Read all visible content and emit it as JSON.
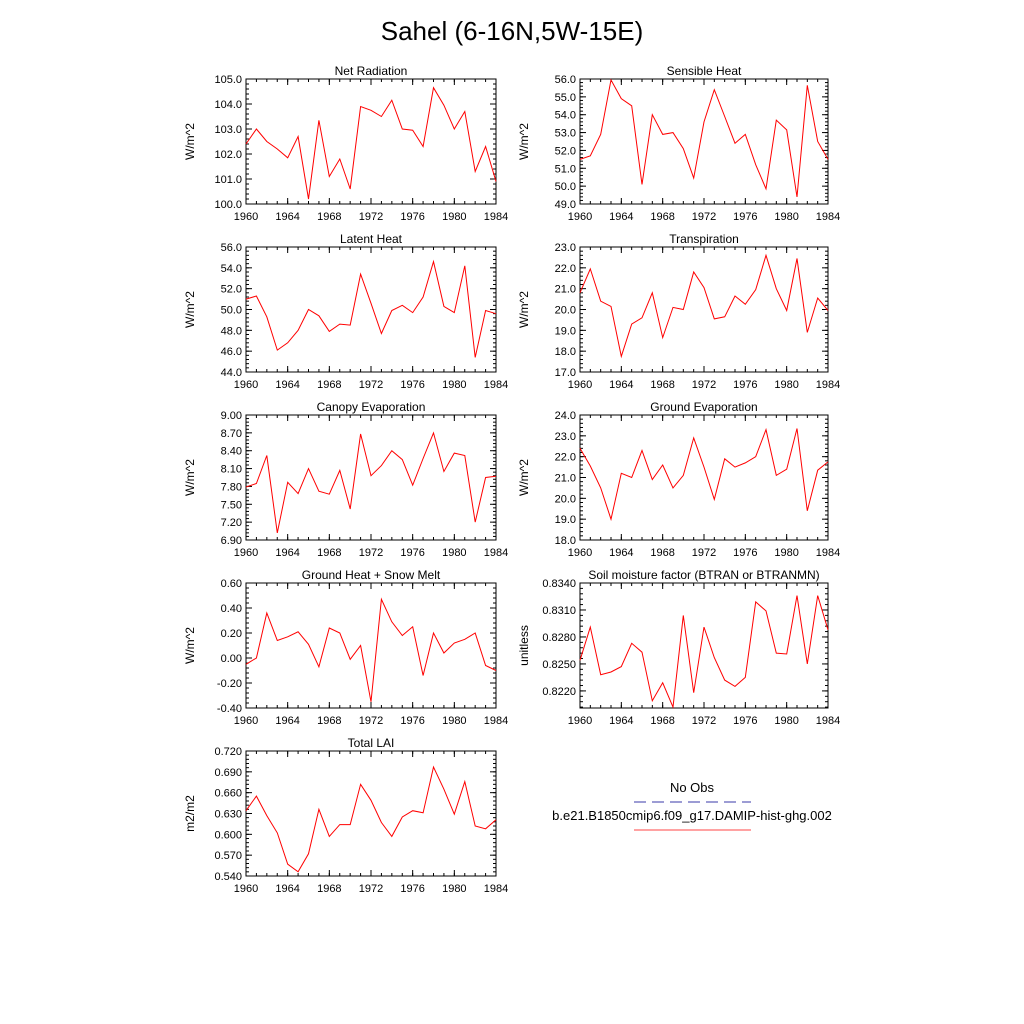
{
  "title": "Sahel (6-16N,5W-15E)",
  "chart_data": [
    {
      "type": "line",
      "title": "Net Radiation",
      "ylabel": "W/m^2",
      "x": [
        1960,
        1961,
        1962,
        1963,
        1964,
        1965,
        1966,
        1967,
        1968,
        1969,
        1970,
        1971,
        1972,
        1973,
        1974,
        1975,
        1976,
        1977,
        1978,
        1979,
        1980,
        1981,
        1982,
        1983,
        1984
      ],
      "values": [
        102.4,
        103.0,
        102.5,
        102.2,
        101.85,
        102.7,
        100.2,
        103.35,
        101.1,
        101.8,
        100.6,
        103.9,
        103.75,
        103.5,
        104.15,
        103.0,
        102.95,
        102.3,
        104.65,
        103.95,
        103.0,
        103.7,
        101.3,
        102.3,
        100.9
      ],
      "xlim": [
        1960,
        1984
      ],
      "ylim": [
        100.0,
        105.0
      ],
      "xticks": [
        "1960",
        "1964",
        "1968",
        "1972",
        "1976",
        "1980",
        "1984"
      ],
      "yticks": [
        "100.0",
        "101.0",
        "102.0",
        "103.0",
        "104.0",
        "105.0"
      ],
      "color": "#ff0000"
    },
    {
      "type": "line",
      "title": "Sensible Heat",
      "ylabel": "W/m^2",
      "x": [
        1960,
        1961,
        1962,
        1963,
        1964,
        1965,
        1966,
        1967,
        1968,
        1969,
        1970,
        1971,
        1972,
        1973,
        1974,
        1975,
        1976,
        1977,
        1978,
        1979,
        1980,
        1981,
        1982,
        1983,
        1984
      ],
      "values": [
        51.5,
        51.7,
        52.9,
        55.95,
        54.9,
        54.5,
        50.1,
        54.0,
        52.9,
        53.0,
        52.1,
        50.45,
        53.6,
        55.4,
        53.9,
        52.4,
        52.9,
        51.2,
        49.85,
        53.7,
        53.15,
        49.4,
        55.65,
        52.5,
        51.5
      ],
      "xlim": [
        1960,
        1984
      ],
      "ylim": [
        49.0,
        56.0
      ],
      "xticks": [
        "1960",
        "1964",
        "1968",
        "1972",
        "1976",
        "1980",
        "1984"
      ],
      "yticks": [
        "49.0",
        "50.0",
        "51.0",
        "52.0",
        "53.0",
        "54.0",
        "55.0",
        "56.0"
      ],
      "color": "#ff0000"
    },
    {
      "type": "line",
      "title": "Latent Heat",
      "ylabel": "W/m^2",
      "x": [
        1960,
        1961,
        1962,
        1963,
        1964,
        1965,
        1966,
        1967,
        1968,
        1969,
        1970,
        1971,
        1972,
        1973,
        1974,
        1975,
        1976,
        1977,
        1978,
        1979,
        1980,
        1981,
        1982,
        1983,
        1984
      ],
      "values": [
        51.0,
        51.3,
        49.3,
        46.1,
        46.8,
        48.0,
        50.0,
        49.4,
        47.9,
        48.6,
        48.5,
        53.4,
        50.6,
        47.7,
        49.9,
        50.4,
        49.7,
        51.2,
        54.6,
        50.3,
        49.7,
        54.2,
        45.4,
        49.9,
        49.6
      ],
      "xlim": [
        1960,
        1984
      ],
      "ylim": [
        44.0,
        56.0
      ],
      "xticks": [
        "1960",
        "1964",
        "1968",
        "1972",
        "1976",
        "1980",
        "1984"
      ],
      "yticks": [
        "44.0",
        "46.0",
        "48.0",
        "50.0",
        "52.0",
        "54.0",
        "56.0"
      ],
      "color": "#ff0000"
    },
    {
      "type": "line",
      "title": "Transpiration",
      "ylabel": "W/m^2",
      "x": [
        1960,
        1961,
        1962,
        1963,
        1964,
        1965,
        1966,
        1967,
        1968,
        1969,
        1970,
        1971,
        1972,
        1973,
        1974,
        1975,
        1976,
        1977,
        1978,
        1979,
        1980,
        1981,
        1982,
        1983,
        1984
      ],
      "values": [
        20.8,
        21.95,
        20.4,
        20.15,
        17.75,
        19.3,
        19.6,
        20.8,
        18.65,
        20.1,
        20.0,
        21.8,
        21.05,
        19.55,
        19.65,
        20.65,
        20.25,
        20.95,
        22.6,
        21.0,
        19.95,
        22.45,
        18.9,
        20.55,
        19.95
      ],
      "xlim": [
        1960,
        1984
      ],
      "ylim": [
        17.0,
        23.0
      ],
      "xticks": [
        "1960",
        "1964",
        "1968",
        "1972",
        "1976",
        "1980",
        "1984"
      ],
      "yticks": [
        "17.0",
        "18.0",
        "19.0",
        "20.0",
        "21.0",
        "22.0",
        "23.0"
      ],
      "color": "#ff0000"
    },
    {
      "type": "line",
      "title": "Canopy Evaporation",
      "ylabel": "W/m^2",
      "x": [
        1960,
        1961,
        1962,
        1963,
        1964,
        1965,
        1966,
        1967,
        1968,
        1969,
        1970,
        1971,
        1972,
        1973,
        1974,
        1975,
        1976,
        1977,
        1978,
        1979,
        1980,
        1981,
        1982,
        1983,
        1984
      ],
      "values": [
        7.79,
        7.85,
        8.32,
        7.02,
        7.87,
        7.68,
        8.1,
        7.72,
        7.67,
        8.07,
        7.42,
        8.68,
        7.98,
        8.15,
        8.4,
        8.25,
        7.82,
        8.27,
        8.7,
        8.05,
        8.36,
        8.32,
        7.2,
        7.95,
        7.97
      ],
      "xlim": [
        1960,
        1984
      ],
      "ylim": [
        6.9,
        9.0
      ],
      "xticks": [
        "1960",
        "1964",
        "1968",
        "1972",
        "1976",
        "1980",
        "1984"
      ],
      "yticks": [
        "6.90",
        "7.20",
        "7.50",
        "7.80",
        "8.10",
        "8.40",
        "8.70",
        "9.00"
      ],
      "color": "#ff0000"
    },
    {
      "type": "line",
      "title": "Ground Evaporation",
      "ylabel": "W/m^2",
      "x": [
        1960,
        1961,
        1962,
        1963,
        1964,
        1965,
        1966,
        1967,
        1968,
        1969,
        1970,
        1971,
        1972,
        1973,
        1974,
        1975,
        1976,
        1977,
        1978,
        1979,
        1980,
        1981,
        1982,
        1983,
        1984
      ],
      "values": [
        22.4,
        21.55,
        20.5,
        19.0,
        21.2,
        21.0,
        22.3,
        20.9,
        21.6,
        20.5,
        21.1,
        22.9,
        21.5,
        19.95,
        21.9,
        21.5,
        21.7,
        22.0,
        23.3,
        21.1,
        21.4,
        23.35,
        19.4,
        21.35,
        21.75
      ],
      "xlim": [
        1960,
        1984
      ],
      "ylim": [
        18.0,
        24.0
      ],
      "xticks": [
        "1960",
        "1964",
        "1968",
        "1972",
        "1976",
        "1980",
        "1984"
      ],
      "yticks": [
        "18.0",
        "19.0",
        "20.0",
        "21.0",
        "22.0",
        "23.0",
        "24.0"
      ],
      "color": "#ff0000"
    },
    {
      "type": "line",
      "title": "Ground Heat + Snow Melt",
      "ylabel": "W/m^2",
      "x": [
        1960,
        1961,
        1962,
        1963,
        1964,
        1965,
        1966,
        1967,
        1968,
        1969,
        1970,
        1971,
        1972,
        1973,
        1974,
        1975,
        1976,
        1977,
        1978,
        1979,
        1980,
        1981,
        1982,
        1983,
        1984
      ],
      "values": [
        -0.05,
        0.0,
        0.36,
        0.14,
        0.17,
        0.21,
        0.11,
        -0.07,
        0.24,
        0.2,
        -0.01,
        0.1,
        -0.35,
        0.47,
        0.29,
        0.18,
        0.25,
        -0.14,
        0.2,
        0.04,
        0.12,
        0.15,
        0.2,
        -0.06,
        -0.1
      ],
      "xlim": [
        1960,
        1984
      ],
      "ylim": [
        -0.4,
        0.6
      ],
      "xticks": [
        "1960",
        "1964",
        "1968",
        "1972",
        "1976",
        "1980",
        "1984"
      ],
      "yticks": [
        "-0.40",
        "-0.20",
        "0.00",
        "0.20",
        "0.40",
        "0.60"
      ],
      "color": "#ff0000"
    },
    {
      "type": "line",
      "title": "Soil moisture factor (BTRAN or BTRANMN)",
      "ylabel": "unitless",
      "x": [
        1960,
        1961,
        1962,
        1963,
        1964,
        1965,
        1966,
        1967,
        1968,
        1969,
        1970,
        1971,
        1972,
        1973,
        1974,
        1975,
        1976,
        1977,
        1978,
        1979,
        1980,
        1981,
        1982,
        1983,
        1984
      ],
      "values": [
        0.8254,
        0.8291,
        0.8238,
        0.8241,
        0.8247,
        0.8273,
        0.8263,
        0.8209,
        0.8229,
        0.8202,
        0.8304,
        0.8218,
        0.8291,
        0.8257,
        0.8232,
        0.8225,
        0.8235,
        0.8319,
        0.8309,
        0.8262,
        0.8261,
        0.8326,
        0.825,
        0.8326,
        0.8288
      ],
      "xlim": [
        1960,
        1984
      ],
      "ylim": [
        0.8201,
        0.834
      ],
      "xticks": [
        "1960",
        "1964",
        "1968",
        "1972",
        "1976",
        "1980",
        "1984"
      ],
      "yticks": [
        "0.8220",
        "0.8250",
        "0.8280",
        "0.8310",
        "0.8340"
      ],
      "color": "#ff0000"
    },
    {
      "type": "line",
      "title": "Total LAI",
      "ylabel": "m2/m2",
      "x": [
        1960,
        1961,
        1962,
        1963,
        1964,
        1965,
        1966,
        1967,
        1968,
        1969,
        1970,
        1971,
        1972,
        1973,
        1974,
        1975,
        1976,
        1977,
        1978,
        1979,
        1980,
        1981,
        1982,
        1983,
        1984
      ],
      "values": [
        0.634,
        0.655,
        0.627,
        0.602,
        0.557,
        0.546,
        0.572,
        0.636,
        0.597,
        0.614,
        0.614,
        0.672,
        0.649,
        0.617,
        0.597,
        0.625,
        0.634,
        0.631,
        0.697,
        0.665,
        0.629,
        0.676,
        0.612,
        0.608,
        0.621
      ],
      "xlim": [
        1960,
        1984
      ],
      "ylim": [
        0.54,
        0.72
      ],
      "xticks": [
        "1960",
        "1964",
        "1968",
        "1972",
        "1976",
        "1980",
        "1984"
      ],
      "yticks": [
        "0.540",
        "0.570",
        "0.600",
        "0.630",
        "0.660",
        "0.690",
        "0.720"
      ],
      "color": "#ff0000"
    }
  ],
  "legend": {
    "items": [
      {
        "label": "No Obs",
        "color": "#3a3aa8",
        "dashed": true
      },
      {
        "label": "b.e21.B1850cmip6.f09_g17.DAMIP-hist-ghg.002",
        "color": "#ff4444",
        "dashed": false
      }
    ]
  }
}
